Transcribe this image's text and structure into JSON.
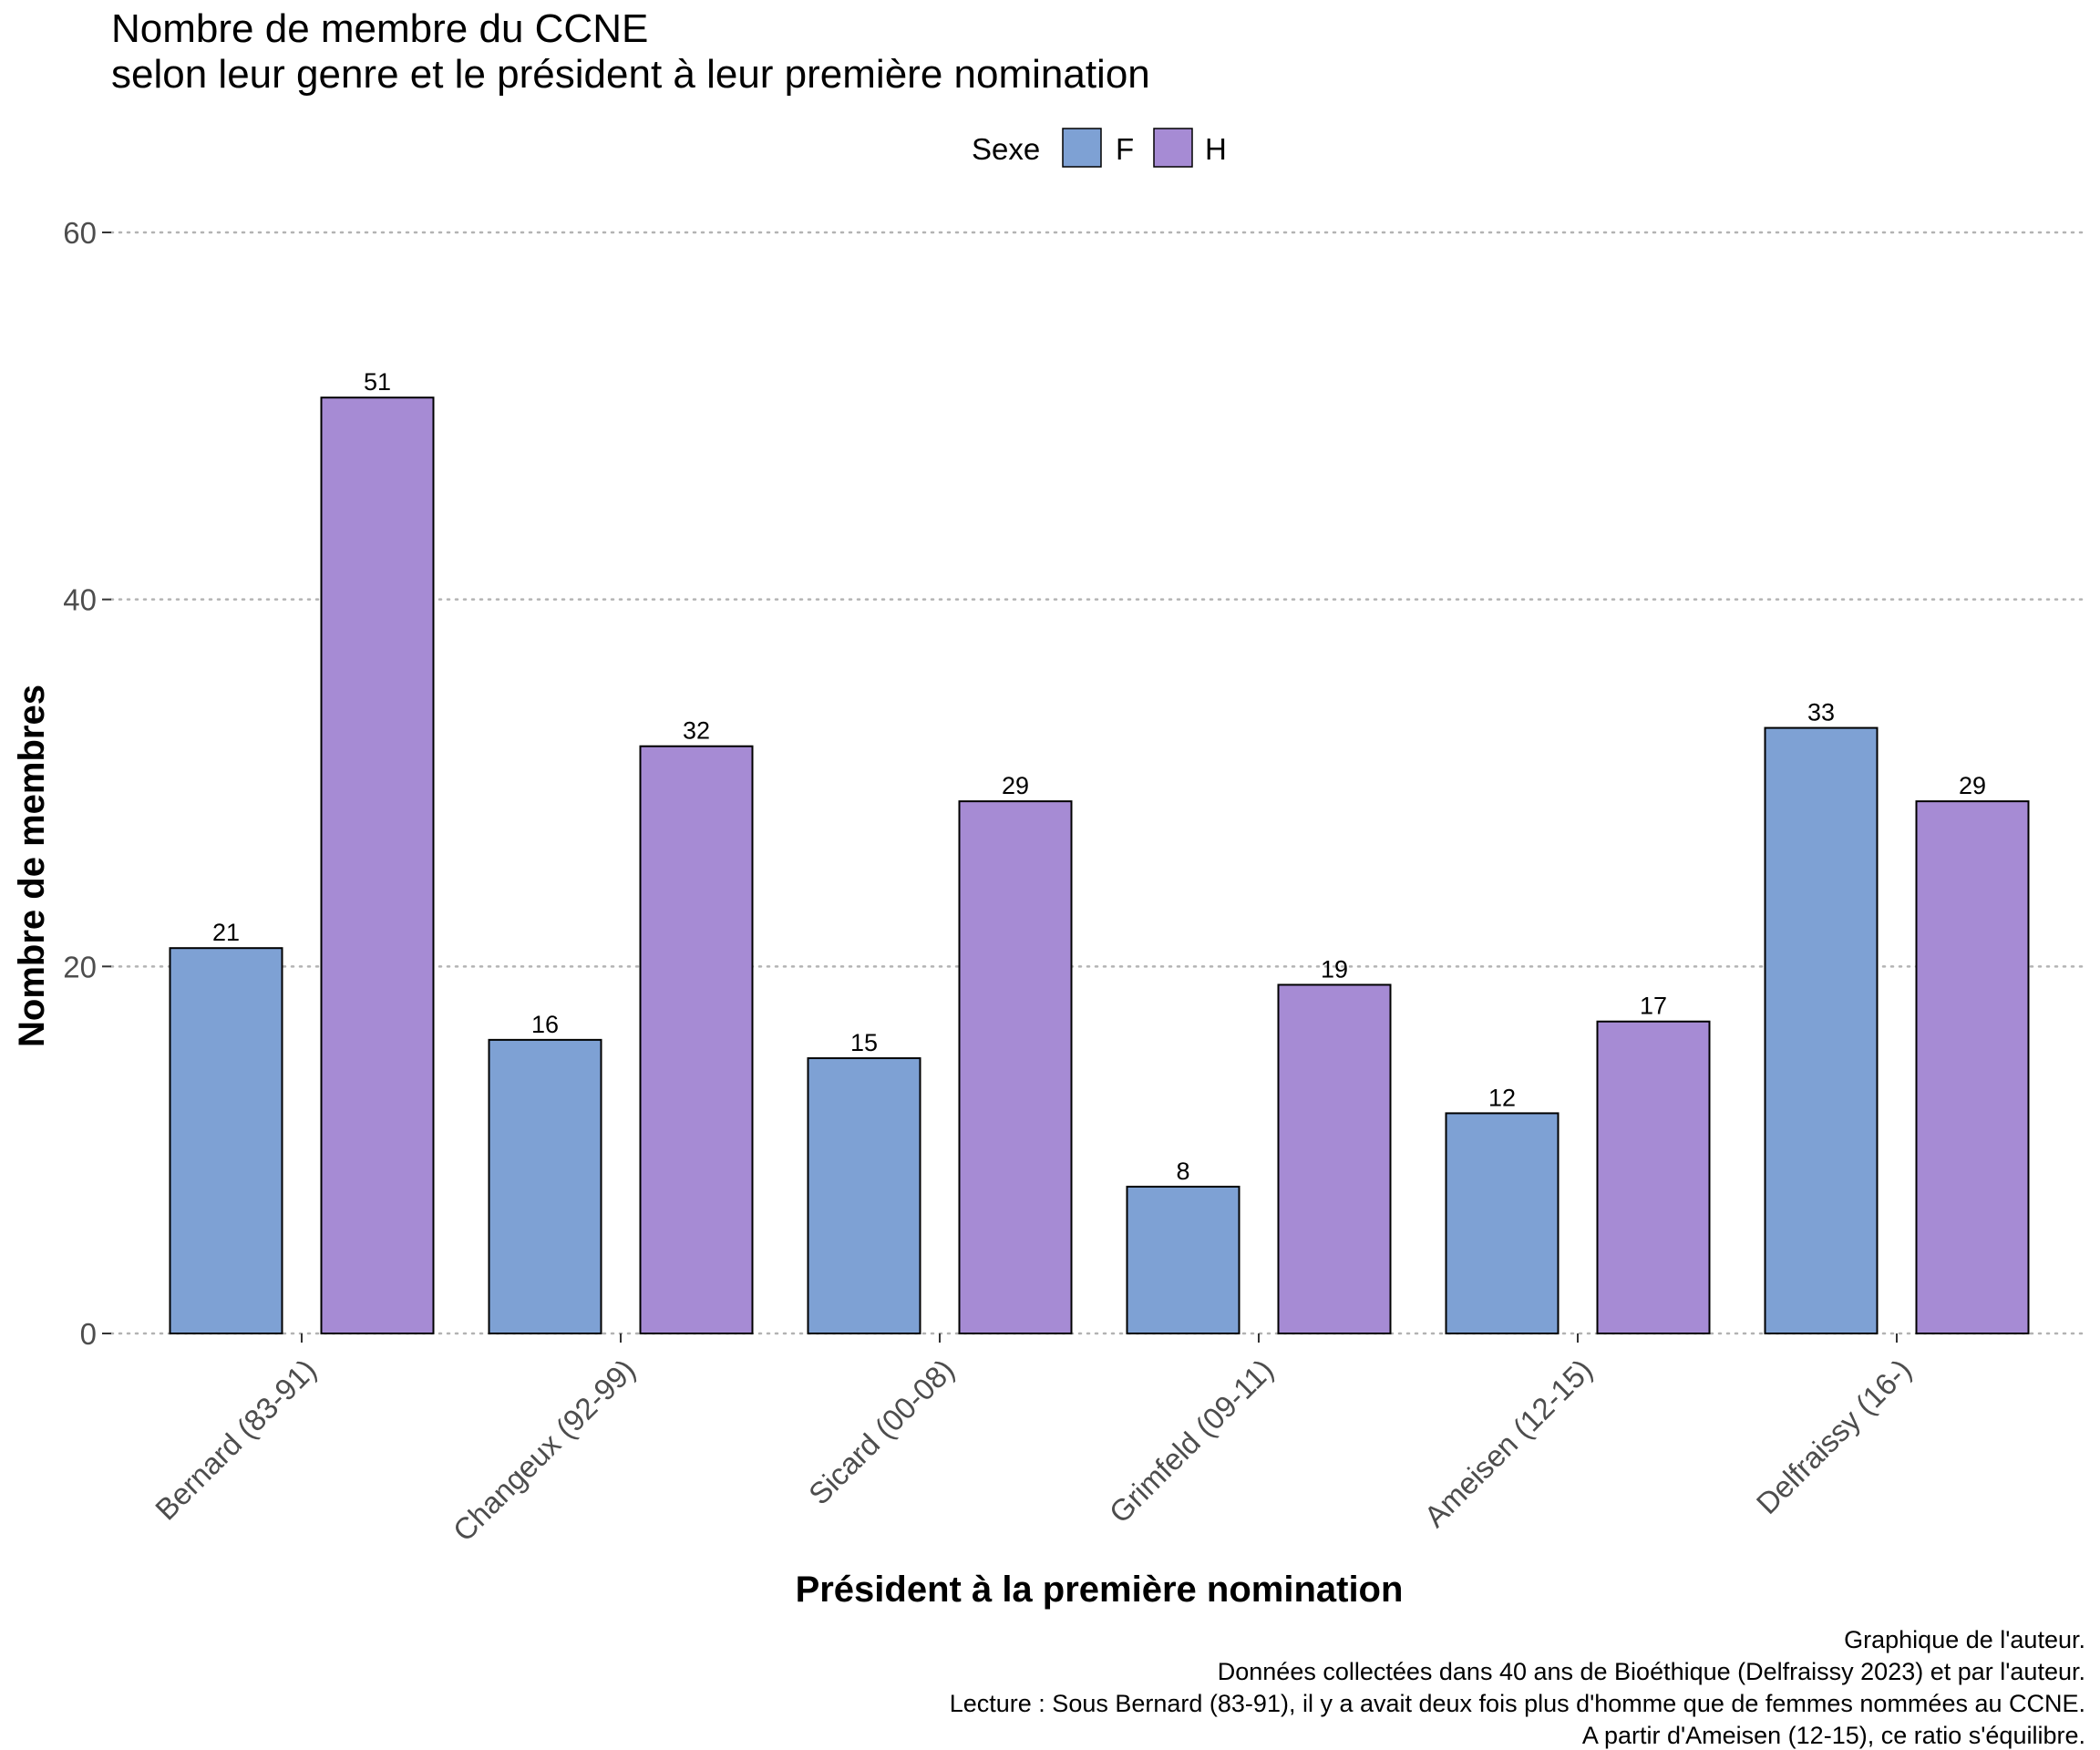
{
  "chart_data": {
    "type": "bar",
    "title": "Nombre de membre du CCNE",
    "subtitle": "selon leur genre et le président à leur première nomination",
    "xlabel": "Président à la première nomination",
    "ylabel": "Nombre de membres",
    "categories": [
      "Bernard (83-91)",
      "Changeux (92-99)",
      "Sicard (00-08)",
      "Grimfeld (09-11)",
      "Ameisen (12-15)",
      "Delfraissy (16-)"
    ],
    "series": [
      {
        "name": "F",
        "color": "#7ea1d4",
        "values": [
          21,
          16,
          15,
          8,
          12,
          33
        ]
      },
      {
        "name": "H",
        "color": "#a68bd4",
        "values": [
          51,
          32,
          29,
          19,
          17,
          29
        ]
      }
    ],
    "ylim": [
      0,
      60
    ],
    "yticks": [
      0,
      20,
      40,
      60
    ],
    "grid": "horizontal dotted",
    "legend": {
      "title": "Sexe",
      "placement": "top"
    },
    "caption": [
      "Graphique de l'auteur.",
      "Données collectées dans 40 ans de Bioéthique (Delfraissy 2023) et par l'auteur.",
      "Lecture : Sous Bernard (83-91), il y a avait deux fois plus d'homme que de femmes nommées au CCNE.",
      "A partir d'Ameisen (12-15), ce ratio s'équilibre."
    ]
  }
}
